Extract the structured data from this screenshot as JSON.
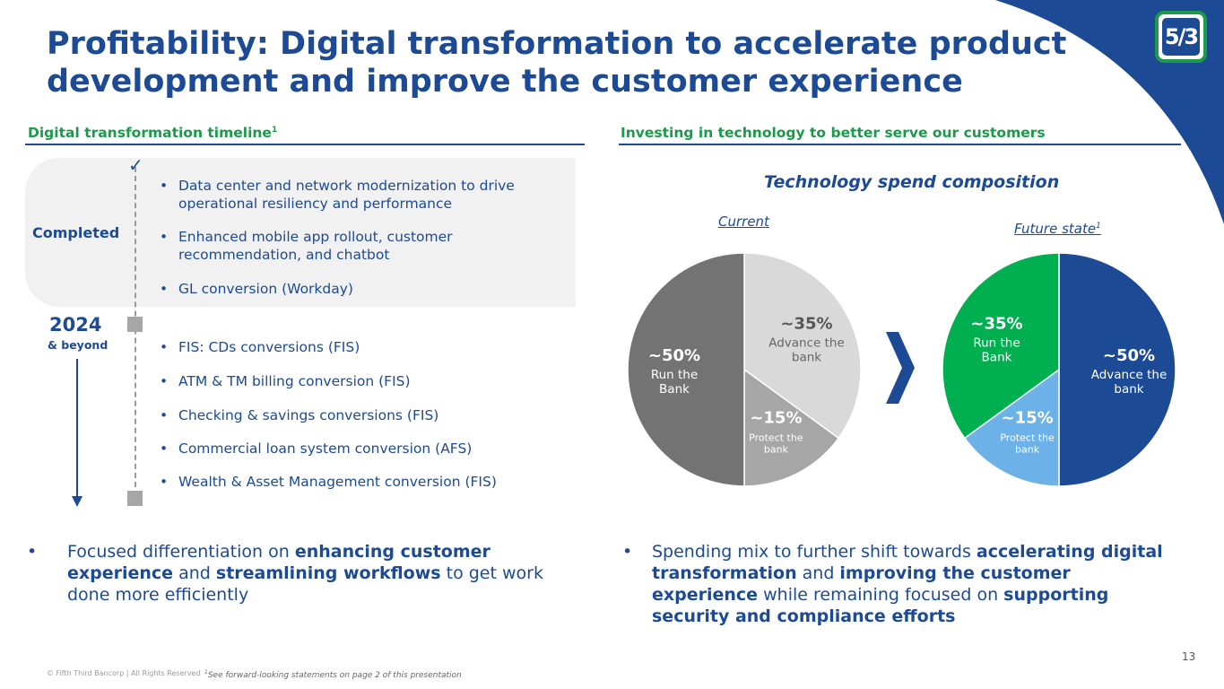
{
  "header": {
    "title": "Profitability: Digital transformation to accelerate product development and improve the customer experience",
    "logo_text": "5/3"
  },
  "left": {
    "heading": "Digital transformation timeline",
    "heading_sup": "1",
    "completed_label": "Completed",
    "year": "2024",
    "year_sub": "& beyond",
    "completed_items": [
      "Data center and network modernization to drive operational resiliency and performance",
      "Enhanced mobile app rollout, customer recommendation, and chatbot",
      "GL conversion (Workday)"
    ],
    "future_items": [
      "FIS: CDs conversions (FIS)",
      "ATM & TM billing conversion (FIS)",
      "Checking & savings conversions (FIS)",
      "Commercial loan system conversion (AFS)",
      "Wealth & Asset Management conversion (FIS)"
    ],
    "summary_parts": [
      {
        "t": "Focused differentiation on ",
        "b": false
      },
      {
        "t": "enhancing customer experience",
        "b": true
      },
      {
        "t": " and ",
        "b": false
      },
      {
        "t": "streamlining workflows",
        "b": true
      },
      {
        "t": " to get work done more efficiently",
        "b": false
      }
    ]
  },
  "right": {
    "heading": "Investing in technology to better serve our customers",
    "summary_parts": [
      {
        "t": "Spending mix to further shift towards ",
        "b": false
      },
      {
        "t": "accelerating digital transformation",
        "b": true
      },
      {
        "t": " and ",
        "b": false
      },
      {
        "t": "improving the customer experience",
        "b": true
      },
      {
        "t": " while remaining focused on ",
        "b": false
      },
      {
        "t": "supporting security and compliance efforts",
        "b": true
      }
    ]
  },
  "chart_data": [
    {
      "type": "pie",
      "title": "Technology spend composition",
      "subtitle": "Current",
      "slices": [
        {
          "label": "Advance the bank",
          "value": 35,
          "display": "~35%",
          "color": "#d9d9d9"
        },
        {
          "label": "Protect the bank",
          "value": 15,
          "display": "~15%",
          "color": "#a6a6a6"
        },
        {
          "label": "Run the Bank",
          "value": 50,
          "display": "~50%",
          "color": "#737373"
        }
      ]
    },
    {
      "type": "pie",
      "title": "Technology spend composition",
      "subtitle": "Future state",
      "subtitle_sup": "1",
      "slices": [
        {
          "label": "Advance the bank",
          "value": 50,
          "display": "~50%",
          "color": "#1c4a94"
        },
        {
          "label": "Protect the bank",
          "value": 15,
          "display": "~15%",
          "color": "#6cb2e8"
        },
        {
          "label": "Run the Bank",
          "value": 35,
          "display": "~35%",
          "color": "#00b050"
        }
      ]
    }
  ],
  "footer": {
    "copyright": "© Fifth Third Bancorp | All Rights Reserved",
    "note_sup": "1",
    "note": "See forward-looking statements on page 2 of this presentation",
    "page": "13"
  },
  "colors": {
    "brand_blue": "#1c4a94",
    "brand_green": "#1b9a4a",
    "panel_gray": "#f1f1f1"
  }
}
